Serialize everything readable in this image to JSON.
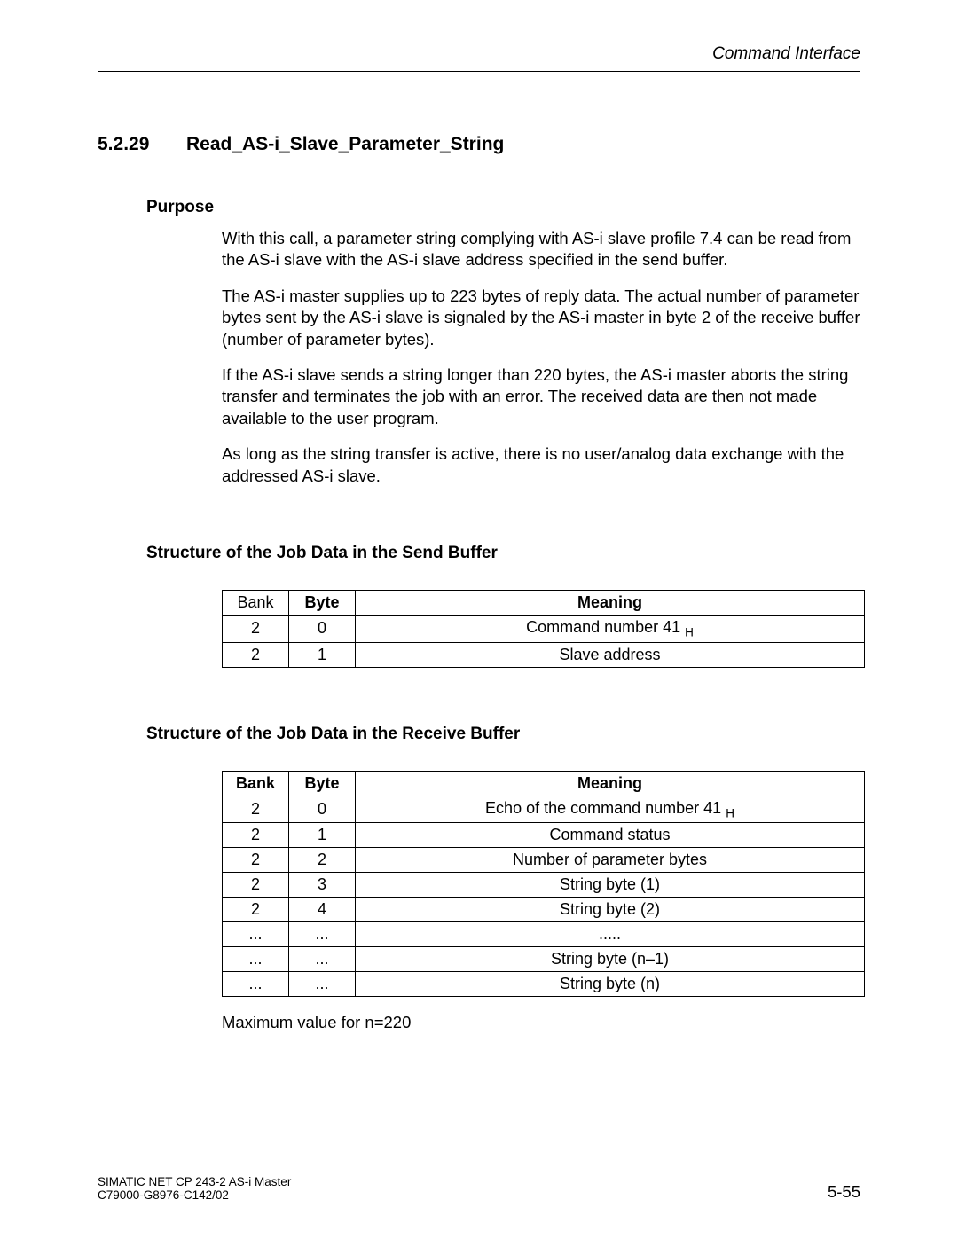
{
  "header": {
    "title": "Command Interface"
  },
  "section": {
    "number": "5.2.29",
    "title": "Read_AS-i_Slave_Parameter_String"
  },
  "purpose": {
    "heading": "Purpose",
    "paragraphs": [
      "With this call, a parameter string complying with AS-i slave profile 7.4 can be read from the AS-i slave with the AS-i slave address specified in the send buffer.",
      "The AS-i master supplies up to 223 bytes of reply data. The actual number of parameter bytes sent by the AS-i slave is signaled by the AS-i master in byte  2 of the receive buffer (number of parameter bytes).",
      "If the AS-i slave sends a string longer than 220 bytes, the AS-i master aborts the string transfer and terminates the job with an error. The received data are then not made available to the user program.",
      "As long as the string transfer is active, there is no user/analog data exchange with the addressed AS-i slave."
    ]
  },
  "send_buffer": {
    "heading": "Structure of the Job Data in the Send Buffer",
    "columns": [
      "Bank",
      "Byte",
      "Meaning"
    ],
    "rows": [
      {
        "bank": "2",
        "byte": "0",
        "meaning_html": "Command number 41 <sub>H</sub>"
      },
      {
        "bank": "2",
        "byte": "1",
        "meaning_html": "Slave address"
      }
    ]
  },
  "receive_buffer": {
    "heading": "Structure of the Job Data in the Receive Buffer",
    "columns": [
      "Bank",
      "Byte",
      "Meaning"
    ],
    "rows": [
      {
        "bank": "2",
        "byte": "0",
        "meaning_html": "Echo of the command number 41 <sub>H</sub>"
      },
      {
        "bank": "2",
        "byte": "1",
        "meaning_html": "Command status"
      },
      {
        "bank": "2",
        "byte": "2",
        "meaning_html": "Number of parameter bytes"
      },
      {
        "bank": "2",
        "byte": "3",
        "meaning_html": "String byte (1)"
      },
      {
        "bank": "2",
        "byte": "4",
        "meaning_html": "String byte (2)"
      },
      {
        "bank": "...",
        "byte": "...",
        "meaning_html": "....."
      },
      {
        "bank": "...",
        "byte": "...",
        "meaning_html": "String byte (n–1)"
      },
      {
        "bank": "...",
        "byte": "...",
        "meaning_html": "String byte (n)"
      }
    ],
    "note": "Maximum value for n=220"
  },
  "footer": {
    "line1": "SIMATIC NET CP 243-2 AS-i Master",
    "line2": "C79000-G8976-C142/02",
    "page": "5-55"
  }
}
